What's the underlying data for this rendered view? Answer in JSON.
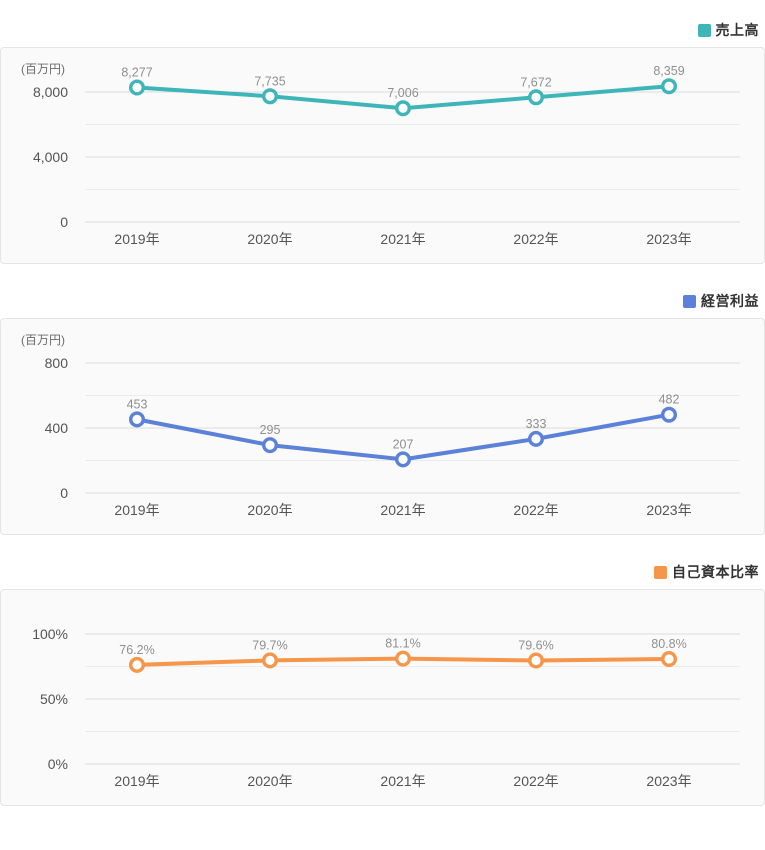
{
  "page": {
    "background_color": "#ffffff",
    "card_background_color": "#fafafa",
    "card_border_color": "#e5e5e5"
  },
  "chart_data": [
    {
      "type": "line",
      "legend": "売上高",
      "color": "#3eb5b9",
      "unit_label": "(百万円)",
      "categories": [
        "2019年",
        "2020年",
        "2021年",
        "2022年",
        "2023年"
      ],
      "values": [
        8277,
        7735,
        7006,
        7672,
        8359
      ],
      "value_labels": [
        "8,277",
        "7,735",
        "7,006",
        "7,672",
        "8,359"
      ],
      "y_ticks": [
        0,
        4000,
        8000
      ],
      "y_tick_labels": [
        "0",
        "4,000",
        "8,000"
      ],
      "ylim": [
        0,
        8000
      ],
      "grid": true,
      "legend_position": "top-right"
    },
    {
      "type": "line",
      "legend": "経営利益",
      "color": "#5b82d8",
      "unit_label": "(百万円)",
      "categories": [
        "2019年",
        "2020年",
        "2021年",
        "2022年",
        "2023年"
      ],
      "values": [
        453,
        295,
        207,
        333,
        482
      ],
      "value_labels": [
        "453",
        "295",
        "207",
        "333",
        "482"
      ],
      "y_ticks": [
        0,
        400,
        800
      ],
      "y_tick_labels": [
        "0",
        "400",
        "800"
      ],
      "ylim": [
        0,
        800
      ],
      "grid": true,
      "legend_position": "top-right"
    },
    {
      "type": "line",
      "legend": "自己資本比率",
      "color": "#f6964a",
      "unit_label": "",
      "categories": [
        "2019年",
        "2020年",
        "2021年",
        "2022年",
        "2023年"
      ],
      "values": [
        76.2,
        79.7,
        81.1,
        79.6,
        80.8
      ],
      "value_labels": [
        "76.2%",
        "79.7%",
        "81.1%",
        "79.6%",
        "80.8%"
      ],
      "y_ticks": [
        0,
        50,
        100
      ],
      "y_tick_labels": [
        "0%",
        "50%",
        "100%"
      ],
      "ylim": [
        0,
        100
      ],
      "grid": true,
      "legend_position": "top-right"
    }
  ],
  "style": {
    "major_grid_color": "#dcdcdc",
    "minor_grid_color": "#ececec",
    "tick_label_color": "#555555",
    "x_label_color": "#555555",
    "value_label_color": "#909090",
    "unit_label_color": "#6b6b6b"
  }
}
